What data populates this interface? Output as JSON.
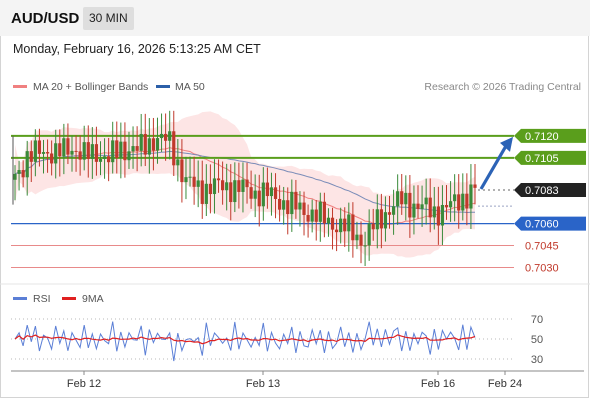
{
  "header": {
    "symbol": "AUD/USD",
    "timeframe": "30 MIN"
  },
  "timestamp": "Monday, February 16, 2026 5:13:25 AM CET",
  "legend": {
    "ma20": {
      "label": "MA 20 + Bollinger Bands",
      "color": "#f08080"
    },
    "ma50": {
      "label": "MA 50",
      "color": "#2b5fa8"
    },
    "rsi": {
      "label": "RSI",
      "color": "#5b7fd6"
    },
    "rsi_ma": {
      "label": "9MA",
      "color": "#e02020"
    }
  },
  "credit": "Research © 2026 Trading Central",
  "colors": {
    "up": "#3a8a3a",
    "down": "#c0392b",
    "resistance": "#5a9e1c",
    "pivot": "#2a64c8",
    "support": "#e88a8a",
    "last_price": "#222222",
    "band_fill": "#fde2e2",
    "forecast_arrow": "#2c63b6"
  },
  "chart_data": [
    {
      "type": "candlestick",
      "title": "AUD/USD",
      "y_range": [
        0.7018,
        0.7148
      ],
      "x_labels": [
        "Feb 12",
        "Feb 13",
        "Feb 16",
        "Feb 24"
      ],
      "levels": [
        {
          "value": 0.712,
          "label": "0.7120",
          "kind": "resistance"
        },
        {
          "value": 0.7105,
          "label": "0.7105",
          "kind": "resistance"
        },
        {
          "value": 0.7083,
          "label": "0.7083",
          "kind": "last"
        },
        {
          "value": 0.706,
          "label": "0.7060",
          "kind": "pivot"
        },
        {
          "value": 0.7045,
          "label": "0.7045",
          "kind": "support"
        },
        {
          "value": 0.703,
          "label": "0.7030",
          "kind": "support"
        }
      ],
      "forecast": {
        "from": 0.7083,
        "to": 0.712
      },
      "series": [
        {
          "name": "MA 20 + Bollinger Bands"
        },
        {
          "name": "MA 50"
        }
      ]
    },
    {
      "type": "line",
      "y_range": [
        25,
        75
      ],
      "y_ticks": [
        70,
        50,
        30
      ],
      "series": [
        {
          "name": "RSI"
        },
        {
          "name": "9MA"
        }
      ]
    }
  ]
}
